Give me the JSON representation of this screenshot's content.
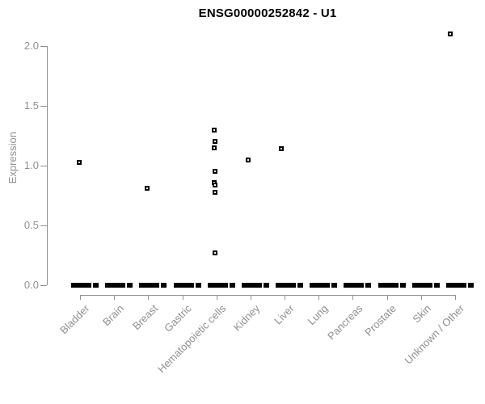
{
  "title": "ENSG00000252842 - U1",
  "y_axis": {
    "label": "Expression",
    "ticks": [
      "2.0",
      "1.5",
      "1.0",
      "0.5",
      "0.0"
    ]
  },
  "x_axis": {
    "categories": [
      "Bladder",
      "Brain",
      "Breast",
      "Gastric",
      "Hematopoietic cells",
      "Kidney",
      "Liver",
      "Lung",
      "Pancreas",
      "Prostate",
      "Skin",
      "Unknown / Other"
    ]
  },
  "colors": {
    "background": "#ffffff",
    "title": "#000000",
    "axis_line": "#909090",
    "axis_text": "#8f8f8f",
    "marker": "#000000"
  },
  "chart_data": {
    "type": "scatter",
    "subtype": "strip-plot",
    "title": "ENSG00000252842 - U1",
    "xlabel": "",
    "ylabel": "Expression",
    "ylim": [
      0,
      2.15
    ],
    "grid": false,
    "legend": "none",
    "marker_style": "small open black square",
    "categories": [
      "Bladder",
      "Brain",
      "Breast",
      "Gastric",
      "Hematopoietic cells",
      "Kidney",
      "Liver",
      "Lung",
      "Pancreas",
      "Prostate",
      "Skin",
      "Unknown / Other"
    ],
    "points": [
      {
        "category": "Bladder",
        "value": 1.03,
        "dx": -1
      },
      {
        "category": "Breast",
        "value": 0.81,
        "dx": -1
      },
      {
        "category": "Hematopoietic cells",
        "value": 1.3,
        "dx": -3
      },
      {
        "category": "Hematopoietic cells",
        "value": 1.2,
        "dx": -2
      },
      {
        "category": "Hematopoietic cells",
        "value": 1.15,
        "dx": -3
      },
      {
        "category": "Hematopoietic cells",
        "value": 0.95,
        "dx": -2
      },
      {
        "category": "Hematopoietic cells",
        "value": 0.86,
        "dx": -3
      },
      {
        "category": "Hematopoietic cells",
        "value": 0.84,
        "dx": -2
      },
      {
        "category": "Hematopoietic cells",
        "value": 0.78,
        "dx": -2
      },
      {
        "category": "Hematopoietic cells",
        "value": 0.27,
        "dx": -2
      },
      {
        "category": "Kidney",
        "value": 1.05,
        "dx": -3
      },
      {
        "category": "Liver",
        "value": 1.14,
        "dx": -4
      },
      {
        "category": "Unknown / Other",
        "value": 2.1,
        "dx": -6
      }
    ],
    "zero_cluster": {
      "all_categories": true,
      "value": 0.0,
      "note": "Every category has many overlapping points at expression 0, rendering as a thick black dash"
    }
  }
}
